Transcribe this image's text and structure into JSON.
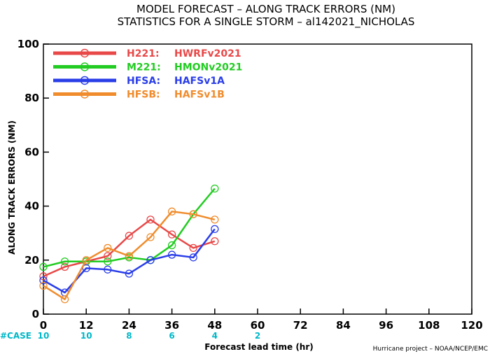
{
  "title_line1": "MODEL FORECAST – ALONG TRACK ERRORS (NM)",
  "title_line2": "STATISTICS FOR A SINGLE STORM – al142021_NICHOLAS",
  "case_label": "#CASE",
  "credit": "Hurricane project – NOAA/NCEP/EMC",
  "chart_data": {
    "type": "line",
    "xlabel": "Forecast lead time (hr)",
    "ylabel": "ALONG TRACK ERRORS (NM)",
    "xlim": [
      0,
      120
    ],
    "ylim": [
      0,
      100
    ],
    "x_ticks": [
      "0",
      "12",
      "24",
      "36",
      "48",
      "60",
      "72",
      "84",
      "96",
      "108",
      "120"
    ],
    "y_ticks": [
      "0",
      "20",
      "40",
      "60",
      "80",
      "100"
    ],
    "grid": false,
    "legend_position": "top-left",
    "cases": [
      {
        "lead": 0,
        "label": "10"
      },
      {
        "lead": 12,
        "label": "10"
      },
      {
        "lead": 24,
        "label": "8"
      },
      {
        "lead": 36,
        "label": "6"
      },
      {
        "lead": 48,
        "label": "4"
      },
      {
        "lead": 60,
        "label": "2"
      }
    ],
    "x": [
      0,
      6,
      12,
      18,
      24,
      30,
      36,
      42,
      48
    ],
    "series": [
      {
        "code": "H221:",
        "name": "HWRFv2021",
        "color": "#e84848",
        "values": [
          14,
          17.5,
          19.5,
          21.5,
          29,
          35,
          29.5,
          24.5,
          27
        ]
      },
      {
        "code": "M221:",
        "name": "HMONv2021",
        "color": "#22cc22",
        "values": [
          17.5,
          19.5,
          19.5,
          19.5,
          21,
          20,
          25.5,
          37,
          46.5
        ]
      },
      {
        "code": "HFSA:",
        "name": "HAFSv1A",
        "color": "#2a3ee8",
        "values": [
          12.5,
          8,
          17,
          16.5,
          15,
          20,
          22,
          21,
          31.5
        ]
      },
      {
        "code": "HFSB:",
        "name": "HAFSv1B",
        "color": "#f08c2c",
        "values": [
          10.5,
          5.5,
          20,
          24.5,
          21.5,
          28.5,
          38,
          37,
          35
        ]
      }
    ]
  }
}
